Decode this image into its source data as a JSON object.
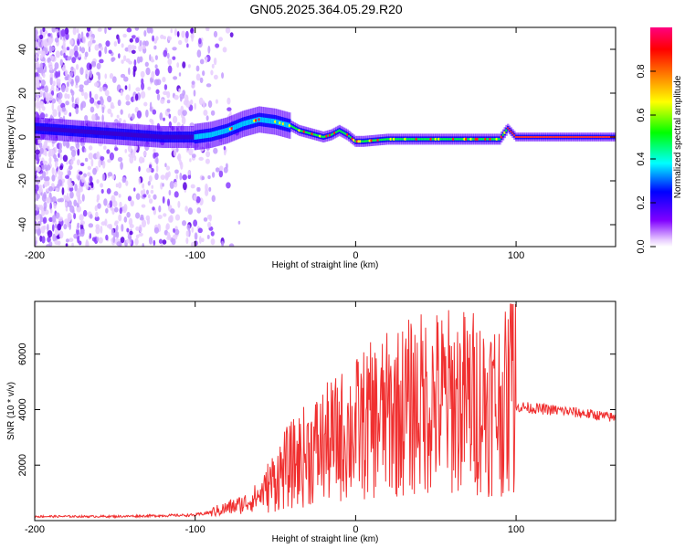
{
  "title": "GN05.2025.364.05.29.R20",
  "chart_data": [
    {
      "type": "heatmap",
      "title": "GN05.2025.364.05.29.R20",
      "xlabel": "Height of straight line (km)",
      "ylabel": "Frequency (Hz)",
      "xlim": [
        -200,
        162
      ],
      "ylim": [
        -50,
        50
      ],
      "xticks": [
        -200,
        -100,
        0,
        100
      ],
      "yticks": [
        -40,
        -20,
        0,
        20,
        40
      ],
      "colorbar": {
        "label": "Normalized spectral amplitude",
        "range": [
          0,
          1
        ],
        "ticks": [
          "0.0",
          "0.2",
          "0.4",
          "0.6",
          "0.8"
        ],
        "colormap": [
          "#ffffff",
          "#8000ff",
          "#0000ff",
          "#00ffff",
          "#00ff00",
          "#ffff00",
          "#ff8000",
          "#ff0000",
          "#ff00ff"
        ]
      },
      "ridge": {
        "x": [
          -200,
          -180,
          -160,
          -140,
          -120,
          -100,
          -90,
          -80,
          -70,
          -60,
          -50,
          -45,
          -40,
          -35,
          -30,
          -25,
          -20,
          -15,
          -10,
          -5,
          0,
          5,
          20,
          40,
          60,
          80,
          90,
          95,
          100,
          130,
          162
        ],
        "y": [
          4,
          3,
          2,
          1,
          0,
          0,
          1,
          3,
          6,
          8,
          7,
          6,
          5,
          3,
          2,
          1,
          0,
          1,
          3,
          1,
          -2,
          -2,
          -1,
          -1,
          -1,
          -1,
          -1,
          4,
          0,
          0,
          0
        ]
      }
    },
    {
      "type": "line",
      "xlabel": "Height of straight line (km)",
      "ylabel": "SNR (10 * v/v)",
      "xlim": [
        -200,
        162
      ],
      "ylim": [
        0,
        7900
      ],
      "xticks": [
        -200,
        -100,
        0,
        100
      ],
      "yticks": [
        2000,
        4000,
        6000
      ],
      "series": [
        {
          "name": "SNR",
          "color": "#f03030",
          "x": [
            -200,
            -150,
            -100,
            -90,
            -80,
            -70,
            -60,
            -55,
            -50,
            -45,
            -40,
            -30,
            -20,
            -10,
            0,
            10,
            20,
            30,
            40,
            50,
            60,
            70,
            80,
            90,
            95,
            98,
            100,
            103,
            110,
            130,
            150,
            162
          ],
          "y": [
            150,
            150,
            200,
            300,
            450,
            600,
            900,
            1200,
            1500,
            1800,
            2000,
            2400,
            2700,
            3000,
            3300,
            3600,
            3800,
            4000,
            4200,
            4300,
            4300,
            4300,
            4250,
            4200,
            4200,
            4300,
            4100,
            4100,
            4050,
            3950,
            3800,
            3700
          ]
        }
      ]
    }
  ]
}
